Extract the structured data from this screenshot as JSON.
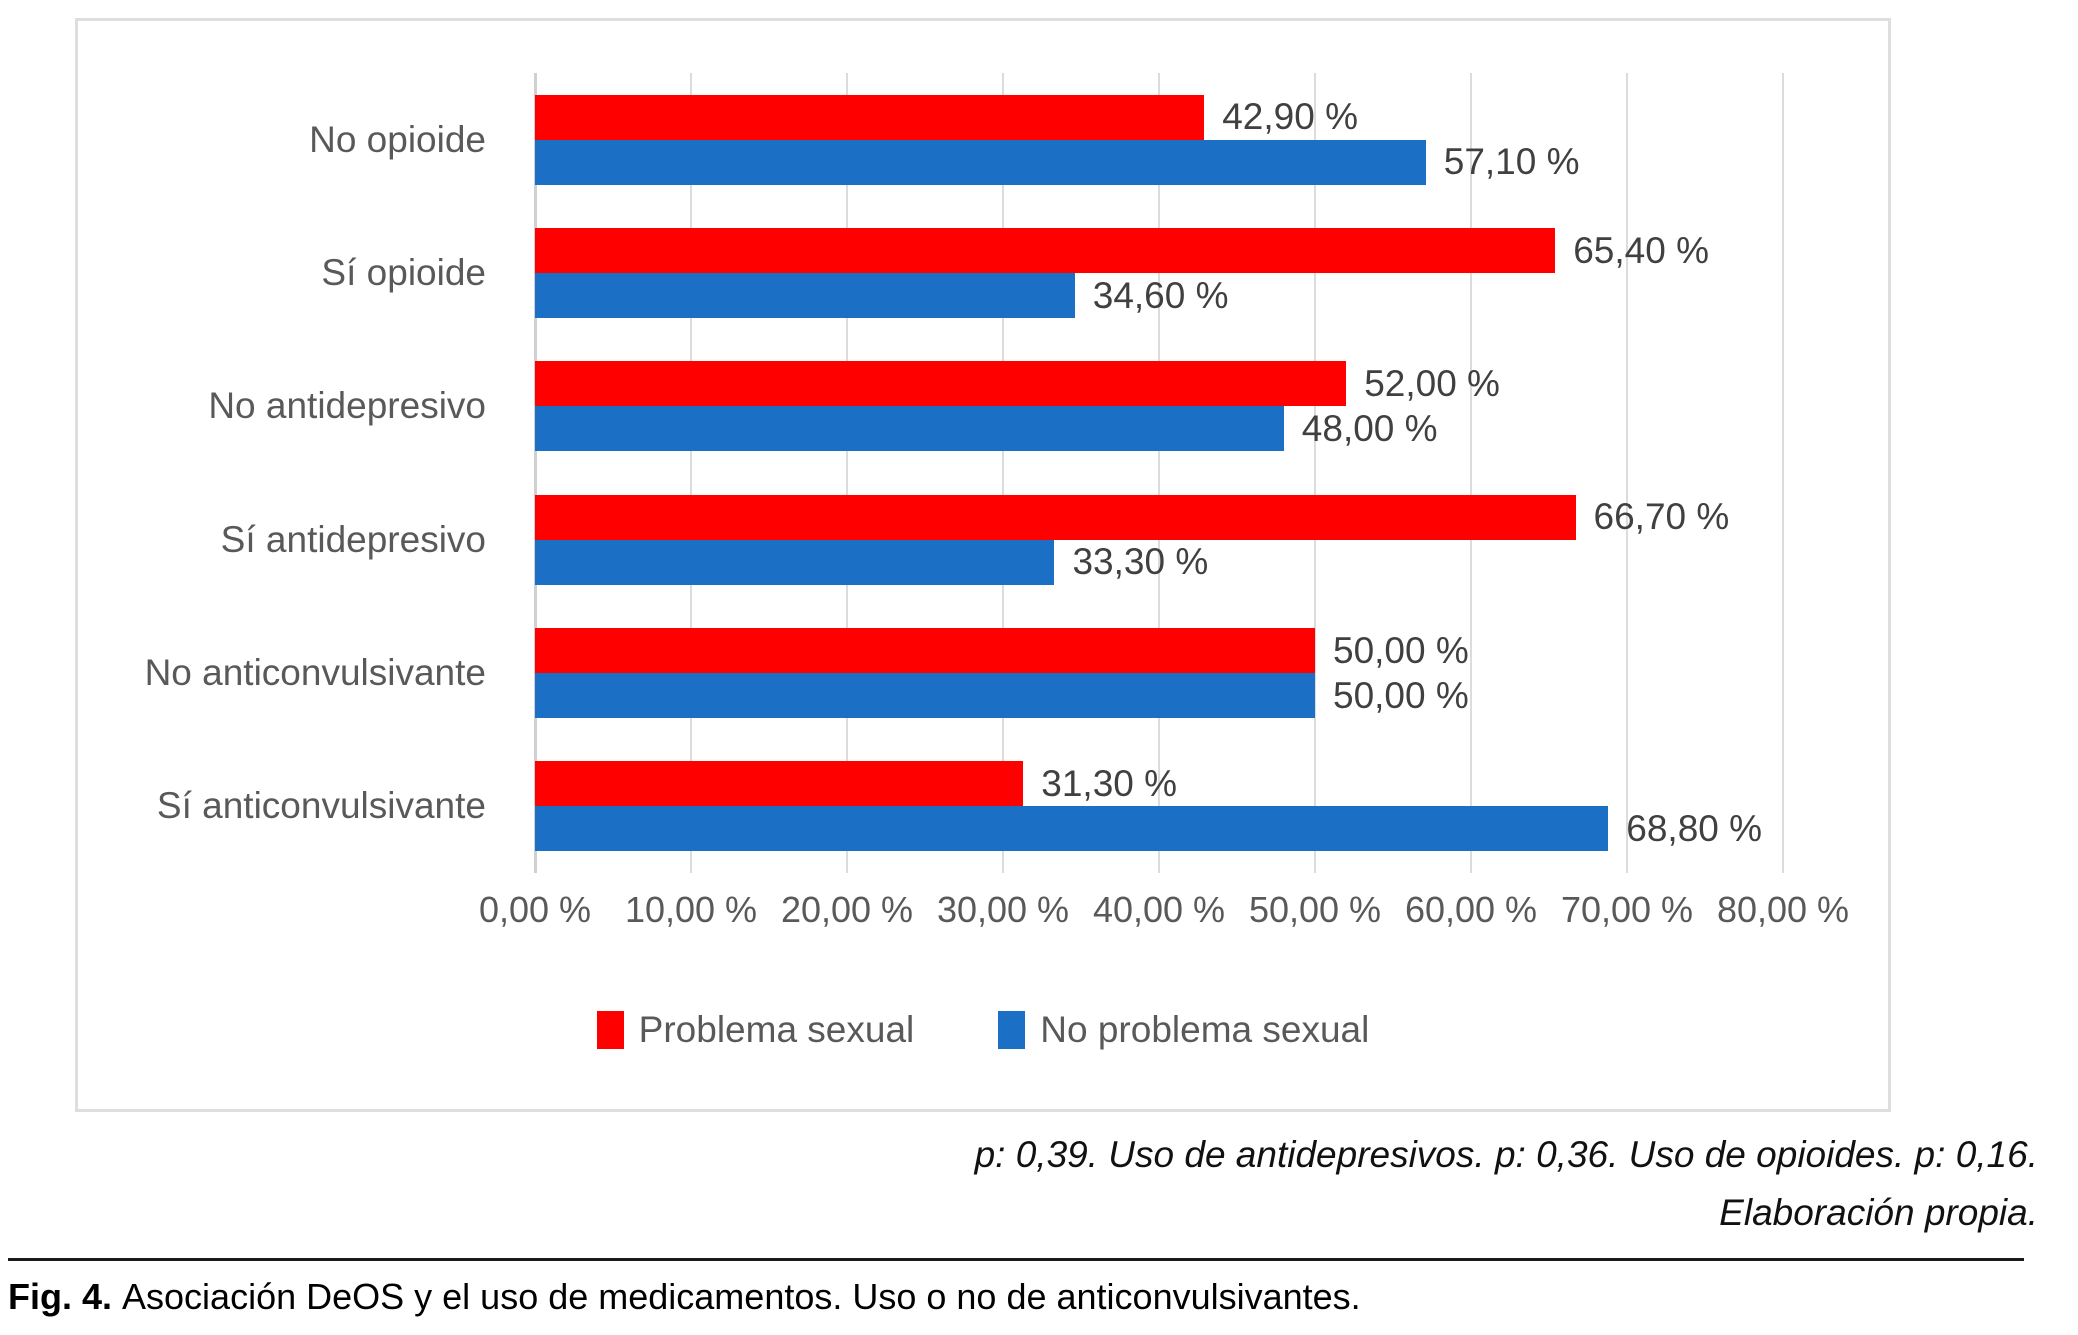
{
  "chart_data": {
    "type": "bar",
    "orientation": "horizontal",
    "title": "",
    "categories": [
      "No opioide",
      "Sí opioide",
      "No antidepresivo",
      "Sí antidepresivo",
      "No anticonvulsivante",
      "Sí anticonvulsivante"
    ],
    "series": [
      {
        "name": "Problema sexual",
        "color": "#ff0000",
        "values": [
          42.9,
          65.4,
          52.0,
          66.7,
          50.0,
          31.3
        ],
        "labels": [
          "42,90 %",
          "65,40 %",
          "52,00 %",
          "66,70 %",
          "50,00 %",
          "31,30 %"
        ]
      },
      {
        "name": "No problema sexual",
        "color": "#1b70c5",
        "values": [
          57.1,
          34.6,
          48.0,
          33.3,
          50.0,
          68.8
        ],
        "labels": [
          "57,10 %",
          "34,60 %",
          "48,00 %",
          "33,30 %",
          "50,00 %",
          "68,80 %"
        ]
      }
    ],
    "x_axis": {
      "min": 0,
      "max": 80,
      "tick_step": 10,
      "tick_labels": [
        "0,00 %",
        "10,00 %",
        "20,00 %",
        "30,00 %",
        "40,00 %",
        "50,00 %",
        "60,00 %",
        "70,00 %",
        "80,00 %"
      ]
    },
    "grid": true,
    "legend_position": "bottom"
  },
  "legend": {
    "items": [
      {
        "label": "Problema sexual",
        "color": "#ff0000"
      },
      {
        "label": "No problema sexual",
        "color": "#1b70c5"
      }
    ]
  },
  "footnotes": {
    "line1": "p: 0,39. Uso de antidepresivos. p: 0,36. Uso de opioides. p: 0,16.",
    "line2": "Elaboración propia."
  },
  "caption": {
    "label": "Fig. 4.",
    "text": "Asociación DeOS y el uso de medicamentos. Uso o no de anticonvulsivantes."
  },
  "colors": {
    "series_problema": "#ff0000",
    "series_no_problema": "#1b70c5",
    "gridline": "#dcdcdc",
    "axis_line": "#d0d0d0",
    "category_label": "#595959",
    "value_label": "#404040",
    "frame_border": "#dedede",
    "caption_rule": "#1a1a1a"
  }
}
